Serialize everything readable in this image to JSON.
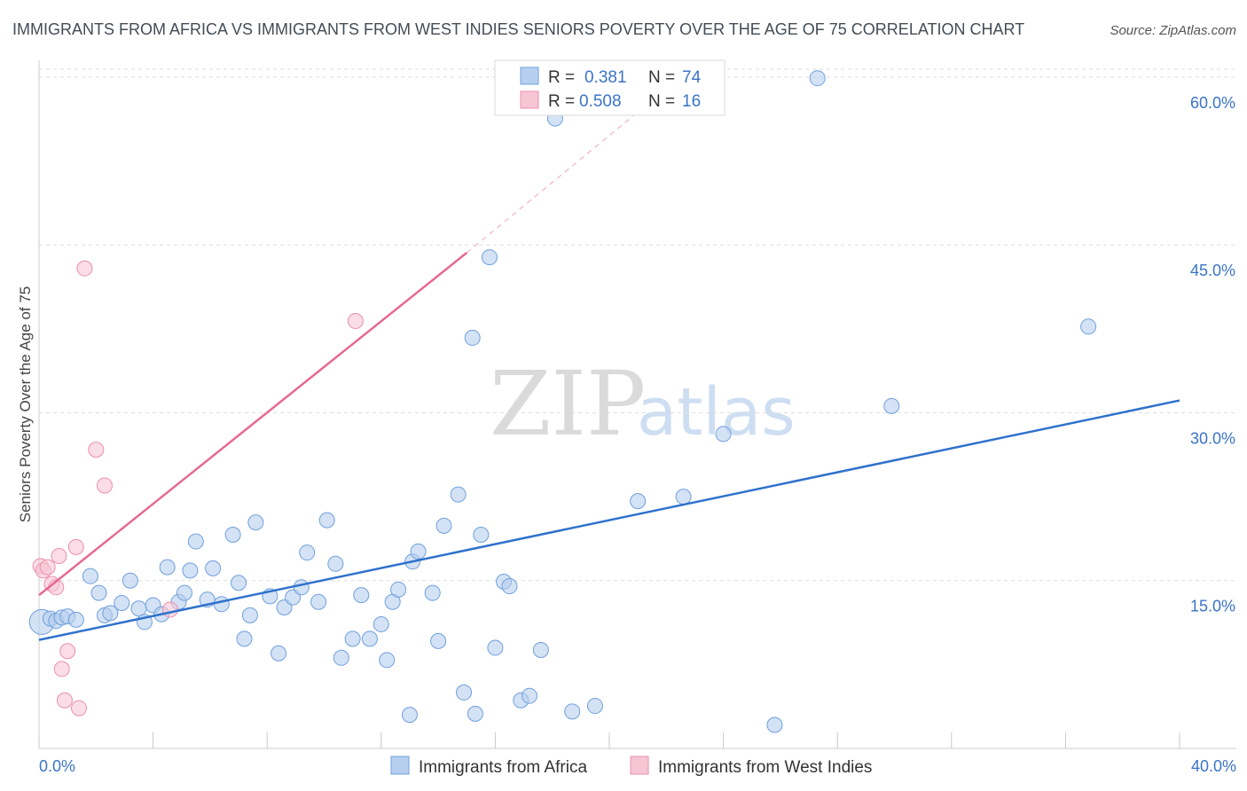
{
  "chart_data": {
    "type": "scatter",
    "title": "IMMIGRANTS FROM AFRICA VS IMMIGRANTS FROM WEST INDIES SENIORS POVERTY OVER THE AGE OF 75 CORRELATION CHART",
    "source": "Source: ZipAtlas.com",
    "xlabel": "",
    "ylabel": "Seniors Poverty Over the Age of 75",
    "xlim": [
      0,
      40
    ],
    "ylim": [
      0,
      61.5
    ],
    "x_tick_labels": {
      "min": "0.0%",
      "max": "40.0%"
    },
    "y_ticks": [
      {
        "value": 15,
        "label": "15.0%"
      },
      {
        "value": 30,
        "label": "30.0%"
      },
      {
        "value": 45,
        "label": "45.0%"
      },
      {
        "value": 60,
        "label": "60.0%"
      }
    ],
    "watermark": {
      "zip": "ZIP",
      "atlas": "atlas"
    },
    "legend": {
      "africa": {
        "r_label": "R = ",
        "r_value": "0.381",
        "n_label": "N = ",
        "n_value": "74"
      },
      "west_indies": {
        "r_label": "R = ",
        "r_value": "0.508",
        "n_label": "N = ",
        "n_value": "16"
      }
    },
    "series": [
      {
        "name": "Immigrants from Africa",
        "color": "#6fa0dc",
        "fill": "#b7cfee",
        "trend": {
          "x": [
            0,
            40
          ],
          "y": [
            9.7,
            31.1
          ],
          "color": "#2f72cc"
        },
        "points": [
          [
            0.1,
            11.3
          ],
          [
            0.4,
            11.6
          ],
          [
            0.6,
            11.4
          ],
          [
            0.8,
            11.7
          ],
          [
            1.0,
            11.8
          ],
          [
            1.3,
            11.5
          ],
          [
            1.8,
            15.4
          ],
          [
            2.1,
            13.9
          ],
          [
            2.3,
            11.9
          ],
          [
            2.5,
            12.1
          ],
          [
            2.9,
            13.0
          ],
          [
            3.2,
            15.0
          ],
          [
            3.5,
            12.5
          ],
          [
            3.7,
            11.3
          ],
          [
            4.0,
            12.8
          ],
          [
            4.3,
            12.0
          ],
          [
            4.5,
            16.2
          ],
          [
            4.9,
            13.1
          ],
          [
            5.1,
            13.9
          ],
          [
            5.3,
            15.9
          ],
          [
            5.5,
            18.5
          ],
          [
            5.9,
            13.3
          ],
          [
            6.1,
            16.1
          ],
          [
            6.4,
            12.9
          ],
          [
            6.8,
            19.1
          ],
          [
            7.0,
            14.8
          ],
          [
            7.2,
            9.8
          ],
          [
            7.4,
            11.9
          ],
          [
            7.6,
            20.2
          ],
          [
            8.1,
            13.6
          ],
          [
            8.4,
            8.5
          ],
          [
            8.6,
            12.6
          ],
          [
            8.9,
            13.5
          ],
          [
            9.2,
            14.4
          ],
          [
            9.4,
            17.5
          ],
          [
            9.8,
            13.1
          ],
          [
            10.1,
            20.4
          ],
          [
            10.4,
            16.5
          ],
          [
            10.6,
            8.1
          ],
          [
            11.0,
            9.8
          ],
          [
            11.3,
            13.7
          ],
          [
            11.6,
            9.8
          ],
          [
            12.0,
            11.1
          ],
          [
            12.2,
            7.9
          ],
          [
            12.4,
            13.1
          ],
          [
            12.6,
            14.2
          ],
          [
            13.1,
            16.7
          ],
          [
            13.3,
            17.6
          ],
          [
            13.8,
            13.9
          ],
          [
            14.0,
            9.6
          ],
          [
            14.2,
            19.9
          ],
          [
            14.7,
            22.7
          ],
          [
            14.9,
            5.0
          ],
          [
            15.3,
            3.1
          ],
          [
            15.5,
            19.1
          ],
          [
            15.2,
            36.7
          ],
          [
            15.8,
            43.9
          ],
          [
            16.0,
            9.0
          ],
          [
            16.3,
            14.9
          ],
          [
            16.5,
            14.5
          ],
          [
            16.9,
            4.3
          ],
          [
            17.2,
            4.7
          ],
          [
            17.6,
            8.8
          ],
          [
            18.1,
            56.3
          ],
          [
            18.7,
            3.3
          ],
          [
            19.5,
            3.8
          ],
          [
            21.0,
            22.1
          ],
          [
            22.6,
            22.5
          ],
          [
            24.0,
            28.1
          ],
          [
            25.8,
            2.1
          ],
          [
            27.3,
            59.9
          ],
          [
            29.9,
            30.6
          ],
          [
            36.8,
            37.7
          ],
          [
            13.0,
            3.0
          ]
        ]
      },
      {
        "name": "Immigrants from West Indies",
        "color": "#ec8fae",
        "fill": "#f6c6d5",
        "trend": {
          "x": [
            0,
            15
          ],
          "y": [
            13.7,
            44.3
          ],
          "color": "#e66a94",
          "dashed_to": {
            "x": 21.3,
            "y": 57.5
          }
        },
        "points": [
          [
            0.05,
            16.3
          ],
          [
            0.15,
            15.9
          ],
          [
            0.3,
            16.2
          ],
          [
            0.45,
            14.7
          ],
          [
            0.6,
            14.4
          ],
          [
            0.7,
            17.2
          ],
          [
            0.8,
            7.1
          ],
          [
            0.9,
            4.3
          ],
          [
            1.0,
            8.7
          ],
          [
            1.3,
            18.0
          ],
          [
            1.4,
            3.6
          ],
          [
            1.6,
            42.9
          ],
          [
            2.0,
            26.7
          ],
          [
            2.3,
            23.5
          ],
          [
            4.6,
            12.4
          ],
          [
            11.1,
            38.2
          ]
        ]
      }
    ]
  }
}
